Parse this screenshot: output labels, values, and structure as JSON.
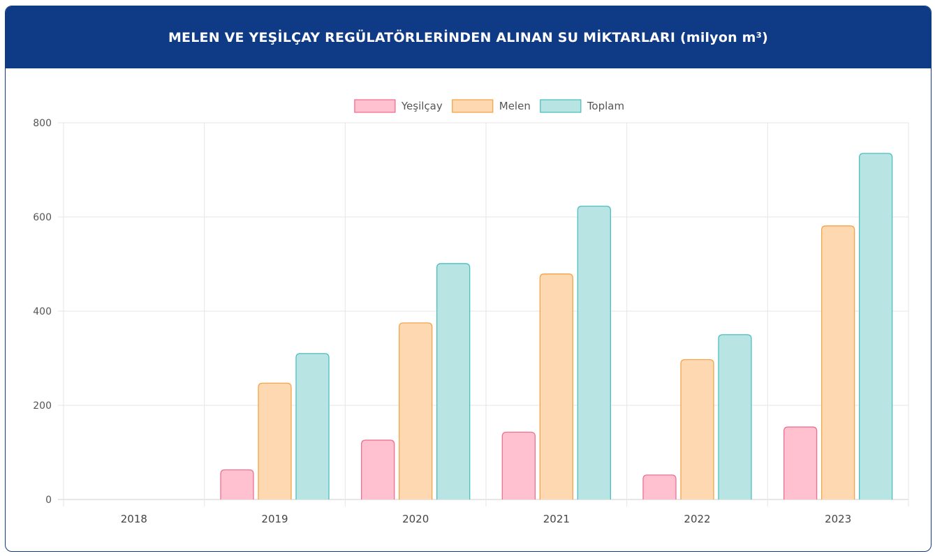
{
  "header": {
    "title": "MELEN VE YEŞİLÇAY REGÜLATÖRLERİNDEN ALINAN SU MİKTARLARI (milyon m³)"
  },
  "chart_data": {
    "type": "bar",
    "title": "MELEN VE YEŞİLÇAY REGÜLATÖRLERİNDEN ALINAN SU MİKTARLARI (milyon m³)",
    "categories": [
      "2018",
      "2019",
      "2020",
      "2021",
      "2022",
      "2023"
    ],
    "series": [
      {
        "name": "Yeşilçay",
        "values": [
          0,
          63,
          126,
          143,
          52,
          154
        ],
        "fill": "#ffc0d0",
        "stroke": "#f0708f"
      },
      {
        "name": "Melen",
        "values": [
          0,
          247,
          375,
          479,
          297,
          581
        ],
        "fill": "#fed8b0",
        "stroke": "#f5a449"
      },
      {
        "name": "Toplam",
        "values": [
          0,
          310,
          501,
          623,
          350,
          735
        ],
        "fill": "#b8e5e4",
        "stroke": "#4dbfc0"
      }
    ],
    "ylim": [
      0,
      800
    ],
    "yticks": [
      0,
      200,
      400,
      600,
      800
    ],
    "grid": true,
    "legend": "top-center"
  }
}
